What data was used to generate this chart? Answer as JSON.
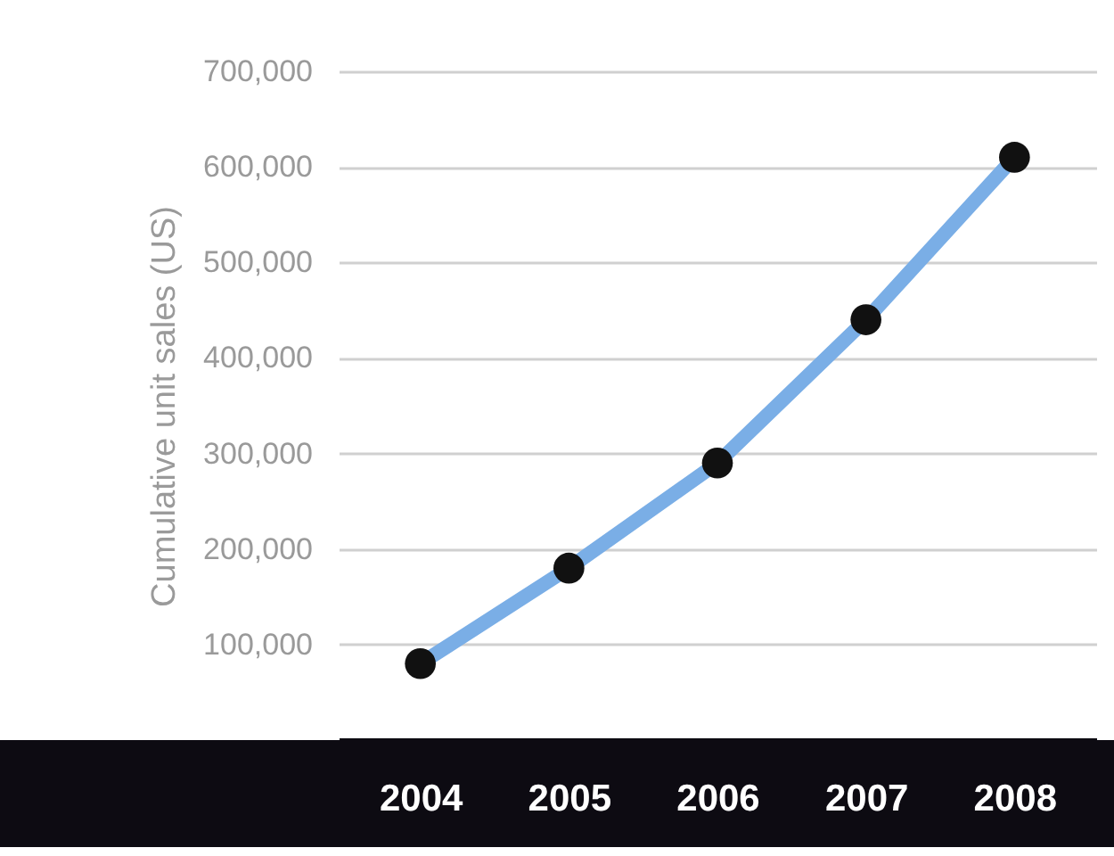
{
  "chart_data": {
    "type": "line",
    "ylabel": "Cumulative unit sales (US)",
    "categories": [
      "2004",
      "2005",
      "2006",
      "2007",
      "2008"
    ],
    "series": [
      {
        "color": "#7aaee6",
        "values": [
          80000,
          180000,
          290000,
          440000,
          610000
        ]
      }
    ],
    "ylim": [
      0,
      700000
    ],
    "yticks": [
      {
        "value": 100000,
        "label": "100,000"
      },
      {
        "value": 200000,
        "label": "200,000"
      },
      {
        "value": 300000,
        "label": "300,000"
      },
      {
        "value": 400000,
        "label": "400,000"
      },
      {
        "value": 500000,
        "label": "500,000"
      },
      {
        "value": 600000,
        "label": "600,000"
      },
      {
        "value": 700000,
        "label": "700,000"
      }
    ],
    "grid": "y",
    "marker": "circle"
  }
}
